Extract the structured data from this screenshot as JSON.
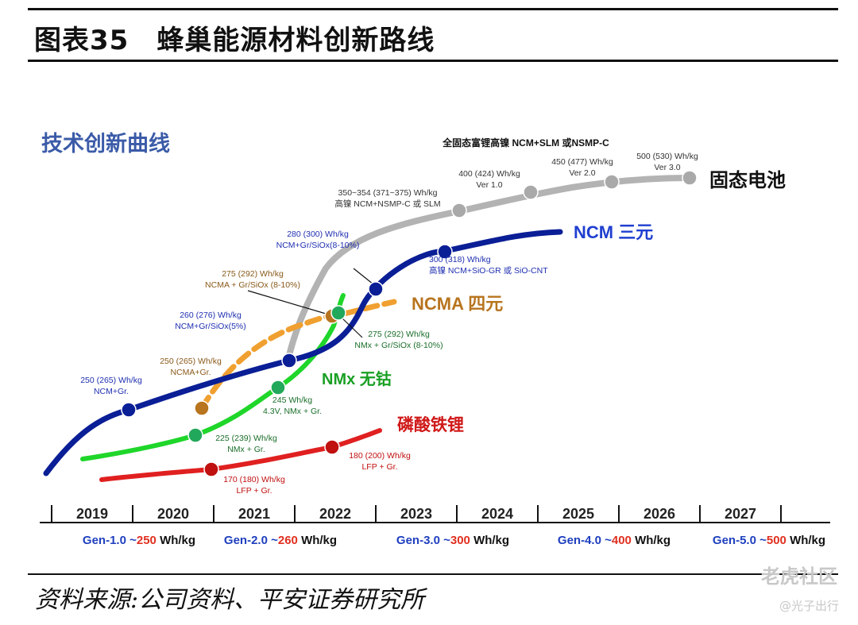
{
  "figure_title": "图表35　蜂巢能源材料创新路线",
  "source": "资料来源:公司资料、平安证券研究所",
  "watermark": {
    "line1": "老虎社区",
    "line2": "@光子出行"
  },
  "chart_data": {
    "type": "line",
    "subtitle": "技术创新曲线",
    "x_axis_years": [
      "2019",
      "2020",
      "2021",
      "2022",
      "2023",
      "2024",
      "2025",
      "2026",
      "2027"
    ],
    "generations": [
      {
        "gen": "Gen-1.0 ~",
        "value": "250",
        "unit": " Wh/kg"
      },
      {
        "gen": "Gen-2.0 ~",
        "value": "260",
        "unit": " Wh/kg"
      },
      {
        "gen": "Gen-3.0 ~",
        "value": "300",
        "unit": " Wh/kg"
      },
      {
        "gen": "Gen-4.0 ~",
        "value": "400",
        "unit": " Wh/kg"
      },
      {
        "gen": "Gen-5.0 ~",
        "value": "500",
        "unit": " Wh/kg"
      }
    ],
    "series": [
      {
        "name": "固态电池",
        "color": "#b3b3b3",
        "dashed": false,
        "label_color": "#111111"
      },
      {
        "name": "NCM 三元",
        "color": "#0a1e96",
        "dashed": false,
        "label_color": "#1f3fd0"
      },
      {
        "name": "NCMA 四元",
        "color": "#f0a030",
        "dashed": true,
        "label_color": "#b8741e",
        "point_color": "#b8741e"
      },
      {
        "name": "NMx 无钴",
        "color": "#1fd62a",
        "dashed": false,
        "label_color": "#1aa024",
        "point_color": "#22a85a"
      },
      {
        "name": "磷酸铁锂",
        "color": "#e02020",
        "dashed": false,
        "label_color": "#d01818",
        "point_color": "#c01010"
      }
    ],
    "points": [
      {
        "series": "NCM 三元",
        "year": 2019.55,
        "lines": [
          "250 (265) Wh/kg",
          "NCM+Gr."
        ]
      },
      {
        "series": "NCM 三元",
        "year": 2021.35,
        "lines": [
          "260 (276) Wh/kg",
          "NCM+Gr/SiOx(5%)"
        ]
      },
      {
        "series": "NCM 三元",
        "year": 2022.05,
        "lines": [
          "280 (300) Wh/kg",
          "NCM+Gr/SiOx(8-10%)"
        ]
      },
      {
        "series": "NCM 三元",
        "year": 2022.9,
        "lines": [
          "300 (318) Wh/kg",
          "高镍 NCM+SiO-GR 或 SiO-CNT"
        ]
      },
      {
        "series": "固态电池",
        "year": 2022.95,
        "lines": [
          "350~354 (371~375) Wh/kg",
          "高镍 NCM+NSMP-C 或 SLM"
        ]
      },
      {
        "series": "固态电池",
        "year": 2024.0,
        "lines": [
          "400 (424) Wh/kg",
          "Ver 1.0"
        ]
      },
      {
        "series": "固态电池",
        "year": 2025.05,
        "lines": [
          "450 (477) Wh/kg",
          "Ver 2.0"
        ]
      },
      {
        "series": "固态电池",
        "year": 2025.9,
        "lines": [
          "500 (530) Wh/kg",
          "Ver 3.0"
        ]
      },
      {
        "series": "NCMA 四元",
        "year": 2019.95,
        "lines": [
          "250 (265) Wh/kg",
          "NCMA+Gr."
        ]
      },
      {
        "series": "NCMA 四元",
        "year": 2021.55,
        "lines": [
          "275 (292)  Wh/kg",
          "NCMA + Gr/SiOx (8-10%)"
        ]
      },
      {
        "series": "NMx 无钴",
        "year": 2019.8,
        "lines": [
          "225 (239) Wh/kg",
          "NMx + Gr."
        ]
      },
      {
        "series": "NMx 无钴",
        "year": 2020.9,
        "lines": [
          "245  Wh/kg",
          "4.3V, NMx + Gr."
        ]
      },
      {
        "series": "NMx 无钴",
        "year": 2021.6,
        "lines": [
          "275 (292)  Wh/kg",
          "NMx + Gr/SiOx (8-10%)"
        ]
      },
      {
        "series": "磷酸铁锂",
        "year": 2020.0,
        "lines": [
          "170 (180) Wh/kg",
          "LFP + Gr."
        ]
      },
      {
        "series": "磷酸铁锂",
        "year": 2021.5,
        "lines": [
          "180 (200) Wh/kg",
          "LFP + Gr."
        ]
      }
    ],
    "top_annotation": "全固态富锂高镍 NCM+SLM 或NSMP-C"
  }
}
